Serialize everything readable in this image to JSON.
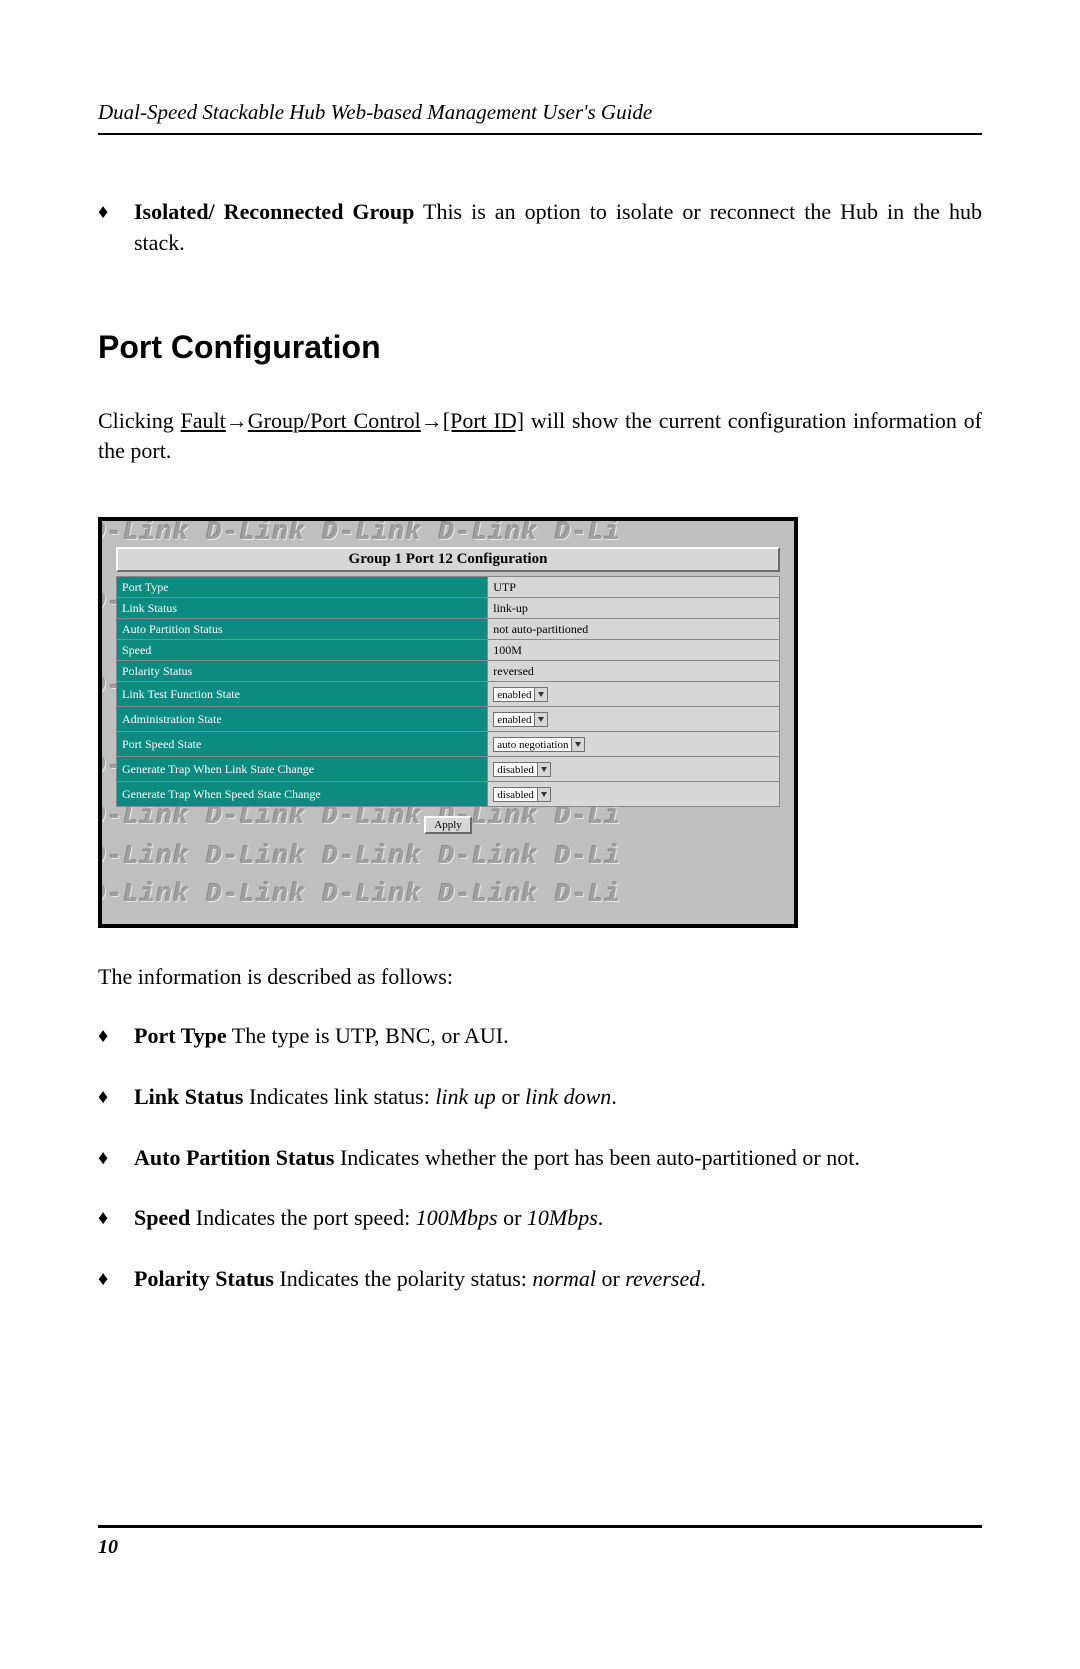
{
  "header": "Dual-Speed Stackable Hub Web-based Management User's Guide",
  "intro_bullet": {
    "term": "Isolated/ Reconnected Group",
    "desc_part1": "    This is an option to isolate or reconnect the Hub in the hub stack."
  },
  "section_title": "Port Configuration",
  "nav_sentence": {
    "pre": "Clicking ",
    "a": "Fault",
    "arrow1": "→",
    "b": "Group/Port Control",
    "arrow2": "→",
    "c": "[Port ID]",
    "post": " will show the current configuration information of the port."
  },
  "figure": {
    "title": "Group 1 Port 12 Configuration",
    "watermark_text": "D-Link  D-Link  D-Link  D-Link  D-Li",
    "rows": [
      {
        "label": "Port Type",
        "value": "UTP",
        "type": "text"
      },
      {
        "label": "Link Status",
        "value": "link-up",
        "type": "text"
      },
      {
        "label": "Auto Partition Status",
        "value": "not auto-partitioned",
        "type": "text"
      },
      {
        "label": "Speed",
        "value": "100M",
        "type": "text"
      },
      {
        "label": "Polarity Status",
        "value": "reversed",
        "type": "text"
      },
      {
        "label": "Link Test Function State",
        "value": "enabled",
        "type": "select"
      },
      {
        "label": "Administration State",
        "value": "enabled",
        "type": "select"
      },
      {
        "label": "Port Speed State",
        "value": "auto negotiation",
        "type": "select"
      },
      {
        "label": "Generate Trap When Link State Change",
        "value": "disabled",
        "type": "select"
      },
      {
        "label": "Generate Trap When Speed State Change",
        "value": "disabled",
        "type": "select"
      }
    ],
    "apply_label": "Apply",
    "colors": {
      "frame_border": "#000000",
      "panel_bg": "#bfbfbf",
      "cell_bg": "#d7d7d7",
      "label_bg": "#0c8b80",
      "label_fg": "#ffffff",
      "watermark_fg": "#a0a0a0"
    }
  },
  "post_figure_text": "The information is described as follows:",
  "bullets": [
    {
      "term": "Port Type",
      "desc": "    The type is UTP, BNC, or AUI."
    },
    {
      "term": "Link Status",
      "desc_pre": "    Indicates link status:  ",
      "it1": "link up",
      "mid": " or ",
      "it2": "link down",
      "post": "."
    },
    {
      "term": "Auto Partition Status",
      "desc": "     Indicates whether the port has been auto-partitioned or not."
    },
    {
      "term": "Speed",
      "desc_pre": "    Indicates the port speed:  ",
      "it1": "100Mbps",
      "mid": " or ",
      "it2": "10Mbps",
      "post": "."
    },
    {
      "term": "Polarity Status",
      "desc_pre": "    Indicates the polarity status:  ",
      "it1": "normal",
      "mid": " or ",
      "it2": "reversed",
      "post": "."
    }
  ],
  "page_number": "10"
}
